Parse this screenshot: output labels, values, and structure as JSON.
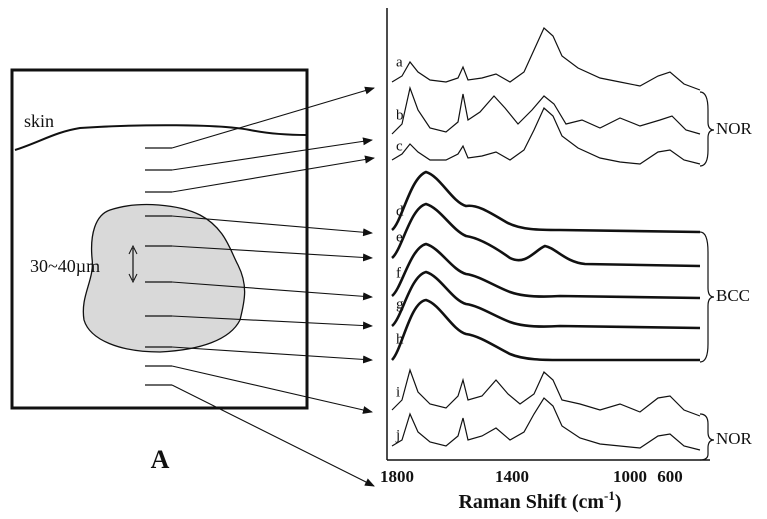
{
  "schematic": {
    "skin_label": "skin",
    "size_label": "30~40µm",
    "panel_label": "A"
  },
  "spectra": {
    "curve_labels": [
      "a",
      "b",
      "c",
      "d",
      "e",
      "f",
      "g",
      "h",
      "i",
      "j"
    ],
    "groups": [
      "NOR",
      "BCC",
      "NOR"
    ]
  },
  "x_axis": {
    "ticks": [
      "1800",
      "1400",
      "1000",
      "600"
    ],
    "title": "Raman Shift (cm",
    "title_superscript": "-1",
    "title_end": ")"
  }
}
